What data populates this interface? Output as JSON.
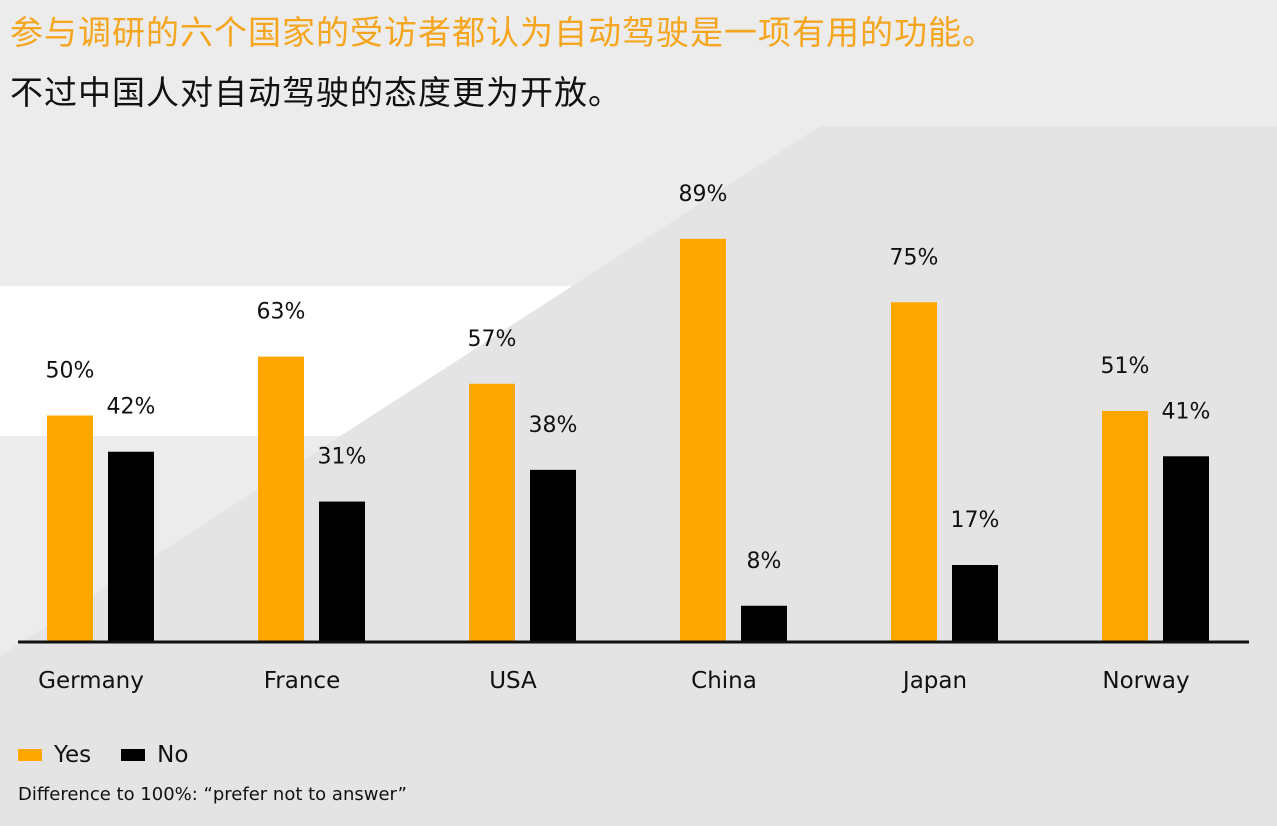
{
  "title": {
    "line1": "参与调研的六个国家的受访者都认为自动驾驶是一项有用的功能。",
    "line2": "不过中国人对自动驾驶的态度更为开放。"
  },
  "colors": {
    "yes": "#ffa600",
    "no": "#000000",
    "title_accent": "#f5a51e"
  },
  "legend": {
    "yes_label": "Yes",
    "no_label": "No"
  },
  "note": "Difference to 100%: “prefer not to answer”",
  "chart_data": {
    "type": "bar",
    "categories": [
      "Germany",
      "France",
      "USA",
      "China",
      "Japan",
      "Norway"
    ],
    "series": [
      {
        "name": "Yes",
        "values": [
          50,
          63,
          57,
          89,
          75,
          51
        ],
        "labels": [
          "50%",
          "63%",
          "57%",
          "89%",
          "75%",
          "51%"
        ]
      },
      {
        "name": "No",
        "values": [
          42,
          31,
          38,
          8,
          17,
          41
        ],
        "labels": [
          "42%",
          "31%",
          "38%",
          "8%",
          "17%",
          "41%"
        ]
      }
    ],
    "ylim": [
      0,
      100
    ],
    "grid": false,
    "legend_position": "bottom-left"
  }
}
